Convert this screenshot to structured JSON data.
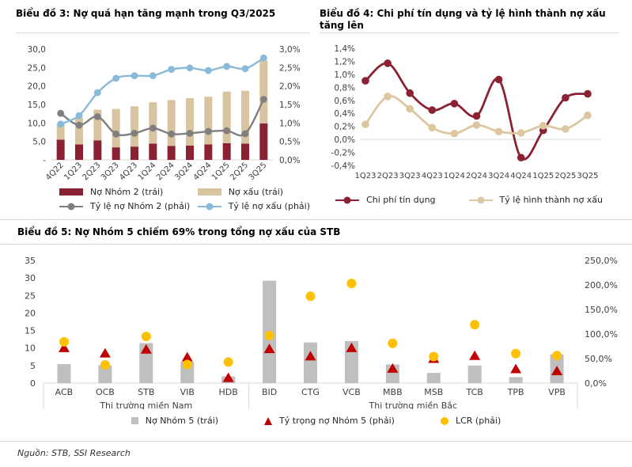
{
  "footer": {
    "source": "Nguồn: STB, SSI Research"
  },
  "colors": {
    "maroon": "#8B2233",
    "tan": "#D9C4A0",
    "blue": "#8ABAD9",
    "gray_line": "#7F7F7F",
    "gray_bar": "#BFBFBF",
    "red_triangle": "#C00000",
    "yellow_dot": "#FFC000",
    "axis_text": "#404040",
    "divider": "#D9D9D9"
  },
  "chart_data": [
    {
      "id": "chart3",
      "type": "combo-stacked-bar-line",
      "title": "Biểu đồ 3: Nợ quá hạn tăng mạnh trong Q3/2025",
      "categories": [
        "4Q22",
        "1Q23",
        "2Q23",
        "3Q23",
        "4Q23",
        "1Q24",
        "2Q24",
        "3Q24",
        "4Q24",
        "1Q25",
        "2Q25",
        "3Q25"
      ],
      "stacked": true,
      "bar_series": [
        {
          "name": "Nợ Nhóm 2 (trái)",
          "slug": "group2-debt-bars",
          "color": "#8B2233",
          "values": [
            5.5,
            4.2,
            5.3,
            3.4,
            3.6,
            4.4,
            3.8,
            3.9,
            4.2,
            4.5,
            4.4,
            9.9
          ]
        },
        {
          "name": "Nợ xấu (trái)",
          "slug": "npl-bars",
          "color": "#D9C4A0",
          "values": [
            4.2,
            7.2,
            8.3,
            10.4,
            10.9,
            11.2,
            12.4,
            12.8,
            12.9,
            14.0,
            14.3,
            17.0
          ]
        }
      ],
      "line_series": [
        {
          "name": "Tỷ lệ nợ Nhóm 2 (phải)",
          "slug": "group2-ratio-line",
          "color": "#7F7F7F",
          "values": [
            1.26,
            0.94,
            1.17,
            0.7,
            0.72,
            0.86,
            0.7,
            0.72,
            0.77,
            0.79,
            0.71,
            1.64
          ]
        },
        {
          "name": "Tỷ lệ nợ xấu (phải)",
          "slug": "npl-ratio-line",
          "color": "#8ABAD9",
          "values": [
            0.97,
            1.2,
            1.82,
            2.21,
            2.28,
            2.28,
            2.45,
            2.49,
            2.42,
            2.53,
            2.47,
            2.76
          ]
        }
      ],
      "left_axis": {
        "min": 0,
        "max": 30,
        "step": 5,
        "ticks": [
          "-",
          "5,0",
          "10,0",
          "15,0",
          "20,0",
          "25,0",
          "30,0"
        ]
      },
      "right_axis": {
        "min": 0,
        "max": 3,
        "step": 0.5,
        "ticks": [
          "0,0%",
          "0,5%",
          "1,0%",
          "1,5%",
          "2,0%",
          "2,5%",
          "3,0%"
        ]
      },
      "grid": false,
      "legend_position": "bottom"
    },
    {
      "id": "chart4",
      "type": "line",
      "title": "Biểu đồ 4: Chi phí tín dụng và tỷ lệ hình thành nợ xấu tăng lên",
      "categories": [
        "1Q23",
        "2Q23",
        "3Q23",
        "4Q23",
        "1Q24",
        "2Q24",
        "3Q24",
        "4Q24",
        "1Q25",
        "2Q25",
        "3Q25"
      ],
      "series": [
        {
          "name": "Chi phí tín dụng",
          "slug": "credit-cost-line",
          "color": "#8B2233",
          "values": [
            0.9,
            1.17,
            0.71,
            0.45,
            0.55,
            0.36,
            0.92,
            -0.28,
            0.14,
            0.64,
            0.7
          ]
        },
        {
          "name": "Tỷ lệ hình thành nợ xấu",
          "slug": "npl-formation-line",
          "color": "#DCC7A1",
          "values": [
            0.23,
            0.66,
            0.47,
            0.18,
            0.09,
            0.22,
            0.12,
            0.1,
            0.21,
            0.16,
            0.37
          ]
        }
      ],
      "y_axis": {
        "min": -0.4,
        "max": 1.4,
        "step": 0.2,
        "zero_line": true,
        "ticks": [
          "-0,4%",
          "-0,2%",
          "0,0%",
          "0,2%",
          "0,4%",
          "0,6%",
          "0,8%",
          "1,0%",
          "1,2%",
          "1,4%"
        ]
      },
      "grid": false,
      "legend_position": "bottom"
    },
    {
      "id": "chart5",
      "type": "bar-scatter",
      "title": "Biểu đồ 5: Nợ Nhóm 5 chiếm 69% trong tổng nợ xấu của STB",
      "categories": [
        "ACB",
        "OCB",
        "STB",
        "VIB",
        "HDB",
        "BID",
        "CTG",
        "VCB",
        "MBB",
        "MSB",
        "TCB",
        "TPB",
        "VPB"
      ],
      "groups": [
        {
          "label": "Thị trường miền Nam",
          "span": 5
        },
        {
          "label": "Thị trường miền Bắc",
          "span": 8
        }
      ],
      "bar_series": {
        "name": "Nợ Nhóm 5 (trái)",
        "slug": "group5-debt-bars",
        "color": "#BFBFBF",
        "values": [
          5.4,
          5.1,
          11.4,
          6.1,
          1.9,
          29.2,
          11.6,
          12.0,
          5.3,
          2.9,
          5.0,
          1.7,
          8.2
        ]
      },
      "triangle_series": {
        "name": "Tỷ trọng nợ Nhóm 5 (phải)",
        "slug": "group5-share-triangles",
        "color": "#C00000",
        "values": [
          72,
          61,
          69,
          53,
          11,
          70,
          55,
          72,
          30,
          50,
          56,
          29,
          25
        ]
      },
      "dot_series": {
        "name": "LCR (phải)",
        "slug": "lcr-dots",
        "color": "#FFC000",
        "values": [
          84,
          37,
          95,
          38,
          43,
          97,
          177,
          203,
          81,
          54,
          119,
          60,
          56
        ]
      },
      "left_axis": {
        "min": 0,
        "max": 35,
        "step": 5,
        "ticks": [
          "0",
          "5",
          "10",
          "15",
          "20",
          "25",
          "30",
          "35"
        ]
      },
      "right_axis": {
        "min": 0,
        "max": 250,
        "step": 50,
        "ticks": [
          "0,0%",
          "50,0%",
          "100,0%",
          "150,0%",
          "200,0%",
          "250,0%"
        ]
      },
      "grid": false,
      "legend_position": "bottom"
    }
  ]
}
